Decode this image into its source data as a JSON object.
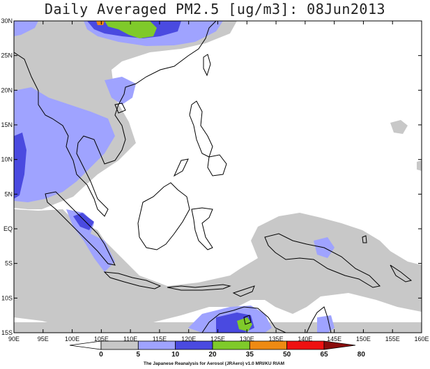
{
  "title": "Daily Averaged PM2.5 [ug/m3]: 08Jun2013",
  "map": {
    "lon_ticks": [
      "90E",
      "95E",
      "100E",
      "105E",
      "110E",
      "115E",
      "120E",
      "125E",
      "130E",
      "135E",
      "140E",
      "145E",
      "150E",
      "155E",
      "160E"
    ],
    "lat_ticks": [
      "30N",
      "25N",
      "20N",
      "15N",
      "10N",
      "5N",
      "EQ",
      "5S",
      "10S",
      "15S"
    ]
  },
  "colorbar": {
    "levels": [
      "0",
      "5",
      "10",
      "20",
      "35",
      "50",
      "65",
      "80"
    ],
    "colors": [
      "#ffffff",
      "#c8c8c8",
      "#9fa3ff",
      "#4a4ae0",
      "#7fca2a",
      "#ee8a12",
      "#ee1111",
      "#8a0c0c"
    ],
    "credit": "The Japanese Reanalysis for Aerosol (JRAero) v1.0 MRI/KU RIAM"
  }
}
